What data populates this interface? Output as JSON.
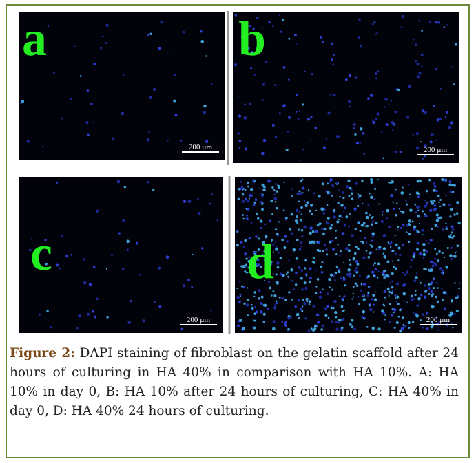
{
  "figure": {
    "panels": [
      {
        "label": "a",
        "scale": "200 µm"
      },
      {
        "label": "b",
        "scale": "200 µm"
      },
      {
        "label": "c",
        "scale": "200 µm"
      },
      {
        "label": "d",
        "scale": "200 µm"
      }
    ],
    "caption": {
      "label": "Figure 2:",
      "text": "DAPI staining of fibroblast on the gelatin scaffold after 24 hours of culturing in HA 40% in comparison with HA 10%. A: HA 10% in day 0, B: HA 10% after 24 hours of culturing, C: HA 40% in day 0, D: HA 40% 24 hours of culturing."
    }
  }
}
